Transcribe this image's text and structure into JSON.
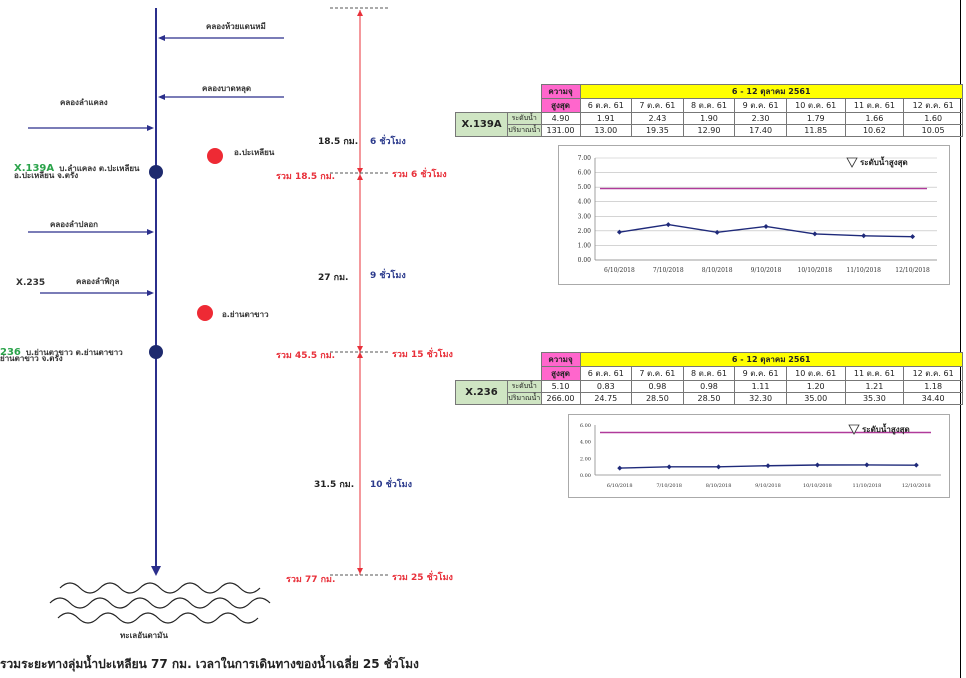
{
  "diagram": {
    "canals": [
      {
        "id": "c1",
        "label": "คลองห้วยแดนหมี"
      },
      {
        "id": "c2",
        "label": "คลองบาดหลุด"
      },
      {
        "id": "c3",
        "label": "คลองลำแคลง"
      },
      {
        "id": "c4",
        "label": "คลองลำปลอก"
      },
      {
        "id": "c5",
        "label": "คลองลำพิกุล"
      }
    ],
    "station_x139a": {
      "code": "X.139A",
      "line1": "บ.ลำแคลง ต.ปะเหลียน",
      "line2": "อ.ปะเหลียน จ.ตรัง"
    },
    "station_x235": {
      "code": "X.235"
    },
    "station_x236": {
      "code": "236",
      "line1": "บ.ย่านตาขาว ต.ย่านตาขาว",
      "line2": "ย่านตาขาว จ.ตรัง"
    },
    "district1": "อ.ปะเหลียน",
    "district2": "อ.ย่านตาขาว",
    "sea": "ทะเลอันดามัน",
    "segments": [
      {
        "dist": "18.5 กม.",
        "time": "6 ชั่วโมง",
        "cum_dist": "รวม 18.5 กม.",
        "cum_time": "รวม  6 ชั่วโมง"
      },
      {
        "dist": "27 กม.",
        "time": "9 ชั่วโมง",
        "cum_dist": "รวม 45.5 กม.",
        "cum_time": "รวม  15 ชั่วโมง"
      },
      {
        "dist": "31.5 กม.",
        "time": "10 ชั่วโมง",
        "cum_dist": "รวม 77 กม.",
        "cum_time": "รวม  25 ชั่วโมง"
      }
    ],
    "footer": "รวมระยะทางลุ่มน้ำปะเหลียน 77 กม. เวลาในการเดินทางของน้ำเฉลี่ย 25 ชั่วโมง"
  },
  "table_header": {
    "max_label": "ความจุ",
    "max_label2": "สูงสุด",
    "period": "6 - 12 ตุลาคม 2561",
    "days": [
      "6 ต.ค. 61",
      "7 ต.ค. 61",
      "8 ต.ค. 61",
      "9 ต.ค. 61",
      "10 ต.ค. 61",
      "11 ต.ค. 61",
      "12 ต.ค. 61"
    ],
    "row_level": "ระดับน้ำ",
    "row_flow": "ปริมาณน้ำ"
  },
  "x139a_table": {
    "station": "X.139A",
    "max_level": "4.90",
    "max_flow": "131.00",
    "levels": [
      "1.91",
      "2.43",
      "1.90",
      "2.30",
      "1.79",
      "1.66",
      "1.60"
    ],
    "flows": [
      "13.00",
      "19.35",
      "12.90",
      "17.40",
      "11.85",
      "10.62",
      "10.05"
    ]
  },
  "x236_table": {
    "station": "X.236",
    "max_level": "5.10",
    "max_flow": "266.00",
    "levels": [
      "0.83",
      "0.98",
      "0.98",
      "1.11",
      "1.20",
      "1.21",
      "1.18"
    ],
    "flows": [
      "24.75",
      "28.50",
      "28.50",
      "32.30",
      "35.00",
      "35.30",
      "34.40"
    ]
  },
  "chart_data": [
    {
      "type": "line",
      "x": [
        "6/10/2018",
        "7/10/2018",
        "8/10/2018",
        "9/10/2018",
        "10/10/2018",
        "11/10/2018",
        "12/10/2018"
      ],
      "series": [
        {
          "values": [
            1.91,
            2.43,
            1.9,
            2.3,
            1.79,
            1.66,
            1.6
          ]
        }
      ],
      "threshold": 4.9,
      "threshold_label": "ระดับน้ำสูงสุด",
      "ylim": [
        0,
        7
      ],
      "yticks": [
        "0.00",
        "1.00",
        "2.00",
        "3.00",
        "4.00",
        "5.00",
        "6.00",
        "7.00"
      ],
      "grid": true,
      "colors": {
        "line": "#1f2a7a",
        "threshold": "#b03a9a"
      }
    },
    {
      "type": "line",
      "x": [
        "6/10/2018",
        "7/10/2018",
        "8/10/2018",
        "9/10/2018",
        "10/10/2018",
        "11/10/2018",
        "12/10/2018"
      ],
      "series": [
        {
          "values": [
            0.83,
            0.98,
            0.98,
            1.11,
            1.2,
            1.21,
            1.18
          ]
        }
      ],
      "threshold": 5.1,
      "threshold_label": "ระดับน้ำสูงสุด",
      "ylim": [
        0,
        6
      ],
      "yticks": [
        "0.00",
        "2.00",
        "4.00",
        "6.00"
      ],
      "grid": false,
      "colors": {
        "line": "#1f2a7a",
        "threshold": "#b03a9a"
      }
    }
  ]
}
